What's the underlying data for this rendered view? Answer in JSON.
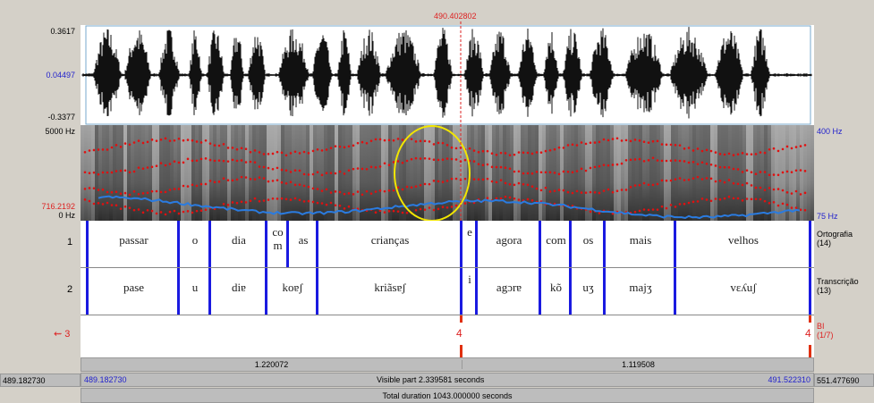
{
  "cursor_time": "490.402802",
  "waveform": {
    "max": "0.3617",
    "mid": "0.04497",
    "min": "-0.3377"
  },
  "spectrogram": {
    "top_left": "5000 Hz",
    "cursor_freq": "716.2192",
    "bottom_left": "0 Hz",
    "top_right": "400 Hz",
    "bottom_right": "75 Hz"
  },
  "tiers": [
    {
      "number": "1",
      "name": "Ortografia",
      "count": "(14)",
      "intervals": [
        "passar",
        "o",
        "dia",
        "co m",
        "as",
        "crianças",
        "e",
        "agora",
        "com",
        "os",
        "mais",
        "velhos"
      ]
    },
    {
      "number": "2",
      "name": "Transcrição",
      "count": "(13)",
      "intervals": [
        "pase",
        "u",
        "diɐ",
        "koɐʃ",
        "kriãsɐʃ",
        "i",
        "agɔrɐ",
        "kõ",
        "uʒ",
        "majʒ",
        "vɛʎuʃ"
      ]
    },
    {
      "number": "3",
      "name": "BI",
      "count": "(1/7)",
      "points": [
        "4",
        "4"
      ]
    }
  ],
  "durations": [
    "1.220072",
    "1.119508"
  ],
  "footer": {
    "window_start": "489.182730",
    "visible_start": "489.182730",
    "visible_part": "Visible part 2.339581 seconds",
    "visible_end": "491.522310",
    "window_end": "551.477690"
  },
  "total_duration": "Total duration 1043.000000 seconds"
}
